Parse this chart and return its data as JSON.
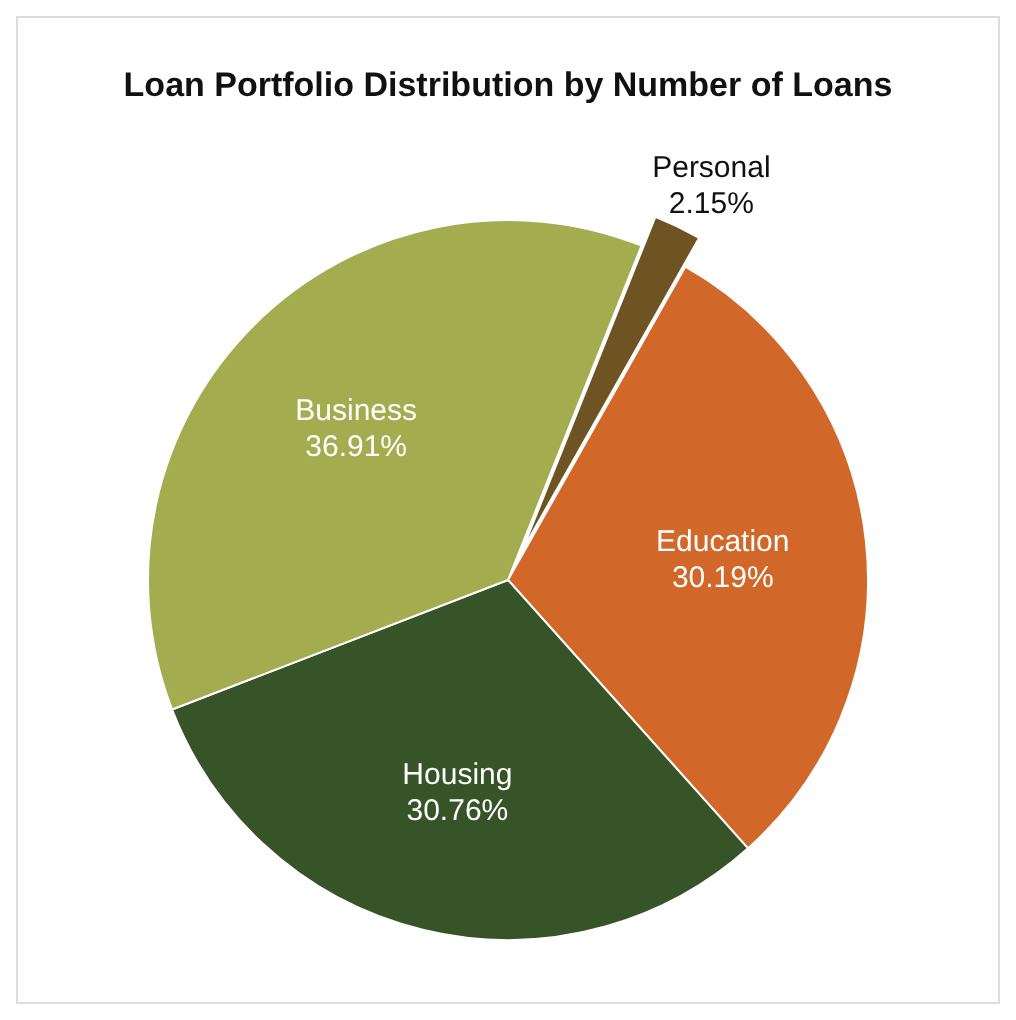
{
  "chart_data": {
    "type": "pie",
    "title": "Loan Portfolio Distribution by Number of Loans",
    "categories": [
      "Personal",
      "Education",
      "Housing",
      "Business"
    ],
    "values": [
      2.15,
      30.19,
      30.76,
      36.91
    ],
    "colors": [
      "#6e5422",
      "#d2672a",
      "#375428",
      "#a3ad50"
    ],
    "value_labels": [
      "2.15%",
      "30.19%",
      "30.76%",
      "36.91%"
    ]
  }
}
